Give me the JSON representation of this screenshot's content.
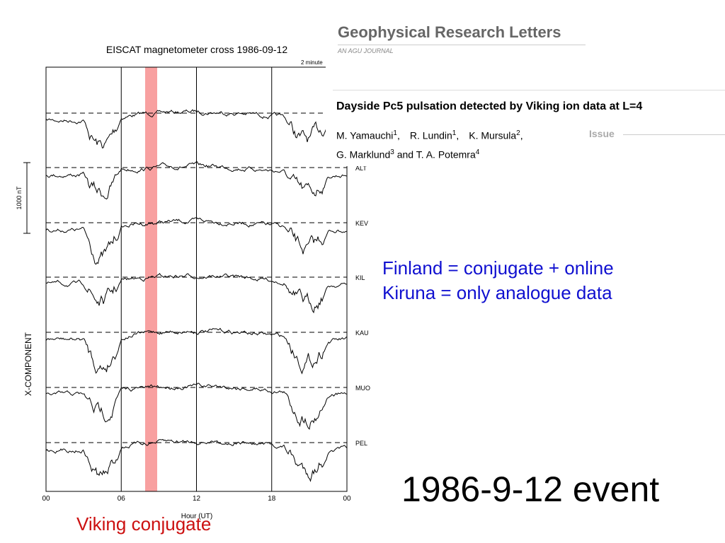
{
  "figure": {
    "title": "EISCAT magnetometer cross 1986-09-12",
    "corner_note": "2 minute",
    "y_label": "X-COMPONENT",
    "scale_label": "1000 nT",
    "x_label": "Hour (UT)",
    "x_ticks": [
      "00",
      "06",
      "12",
      "18",
      "00"
    ],
    "stations": [
      "ALT",
      "KEV",
      "KIL",
      "KAU",
      "MUO",
      "PEL"
    ]
  },
  "article": {
    "journal": "Geophysical Research Letters",
    "journal_sub": "AN AGU JOURNAL",
    "title": "Dayside Pc5 pulsation detected by Viking ion data at L=4",
    "authors": [
      {
        "name": "M. Yamauchi",
        "sup": "1"
      },
      {
        "name": "R. Lundin",
        "sup": "1"
      },
      {
        "name": "K. Mursula",
        "sup": "2"
      },
      {
        "name": "G. Marklund",
        "sup": "3"
      },
      {
        "name": "T. A. Potemra",
        "sup": "4"
      }
    ],
    "issue": "Issue"
  },
  "notes": {
    "line1": "Finland = conjugate + online",
    "line2": "Kiruna = only analogue data",
    "event": "1986-9-12 event",
    "viking": "Viking conjugate"
  }
}
